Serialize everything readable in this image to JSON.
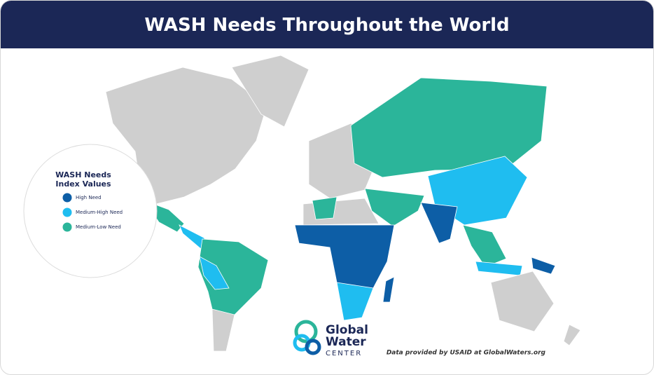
{
  "header": {
    "title": "WASH Needs Throughout the World"
  },
  "legend": {
    "title_lines": [
      "WASH Needs",
      "Index Values"
    ],
    "items": [
      {
        "label": "High Need",
        "color": "#0d5ea6"
      },
      {
        "label": "Medium-High Need",
        "color": "#1fbdf0"
      },
      {
        "label": "Medium-Low Need",
        "color": "#2bb59a"
      }
    ]
  },
  "logo": {
    "lines": [
      "Global",
      "Water",
      "CENTER"
    ]
  },
  "source": "Data provided by USAID at GlobalWaters.org"
}
